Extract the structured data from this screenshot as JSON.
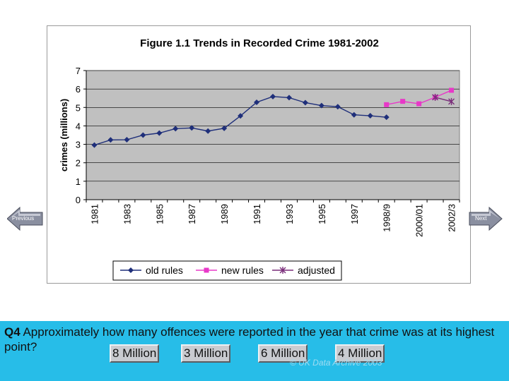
{
  "chart_data": {
    "type": "line",
    "title": "Figure 1.1 Trends in Recorded Crime 1981-2002",
    "ylabel": "crimes (millions)",
    "xlabel": "",
    "ylim": [
      0,
      7
    ],
    "yticks": [
      "0",
      "1",
      "2",
      "3",
      "4",
      "5",
      "6",
      "7"
    ],
    "categories": [
      "1981",
      "1982",
      "1983",
      "1984",
      "1985",
      "1986",
      "1987",
      "1988",
      "1989",
      "1990",
      "1991",
      "1992",
      "1993",
      "1994",
      "1995",
      "1996",
      "1997",
      "1997/8",
      "1998/9",
      "1999/00",
      "2000/01",
      "2001/02",
      "2002/3"
    ],
    "xtick_labels": [
      "1981",
      "1983",
      "1985",
      "1987",
      "1989",
      "1991",
      "1993",
      "1995",
      "1997",
      "1998/9",
      "2000/01",
      "2002/3"
    ],
    "grid": true,
    "legend": "bottom",
    "series": [
      {
        "name": "old rules",
        "color": "#1f2f7a",
        "marker": "diamond",
        "values": [
          2.96,
          3.24,
          3.25,
          3.5,
          3.61,
          3.85,
          3.89,
          3.72,
          3.87,
          4.54,
          5.28,
          5.59,
          5.53,
          5.26,
          5.1,
          5.04,
          4.6,
          4.55,
          4.47,
          null,
          null,
          null,
          null
        ]
      },
      {
        "name": "new rules",
        "color": "#e838c8",
        "marker": "square",
        "values": [
          null,
          null,
          null,
          null,
          null,
          null,
          null,
          null,
          null,
          null,
          null,
          null,
          null,
          null,
          null,
          null,
          null,
          null,
          5.15,
          5.33,
          5.2,
          5.55,
          5.93
        ]
      },
      {
        "name": "adjusted",
        "color": "#7a2d7a",
        "marker": "asterisk",
        "values": [
          null,
          null,
          null,
          null,
          null,
          null,
          null,
          null,
          null,
          null,
          null,
          null,
          null,
          null,
          null,
          null,
          null,
          null,
          null,
          null,
          null,
          5.55,
          5.32
        ]
      }
    ]
  },
  "nav": {
    "previous_label": "Previous",
    "next_label": "Next"
  },
  "quiz": {
    "question_number": "Q4",
    "question_text": " Approximately how many offences were reported in the year that crime was at its highest point?",
    "answers": [
      "8 Million",
      "3 Million",
      "6 Million",
      "4 Million"
    ]
  },
  "copyright": "© UK Data Archive 2003",
  "colors": {
    "plot_background": "#c0c0c0",
    "quiz_background": "#27bde8",
    "nav_arrow": "#8a8fa0"
  }
}
